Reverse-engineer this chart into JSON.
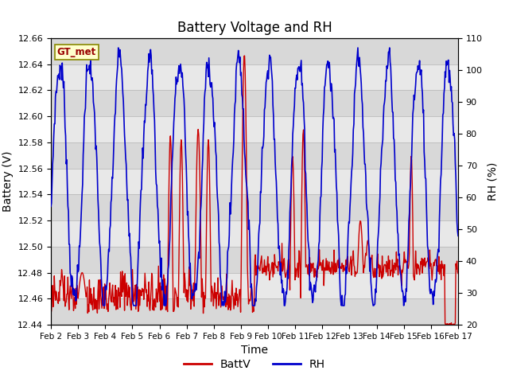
{
  "title": "Battery Voltage and RH",
  "xlabel": "Time",
  "ylabel_left": "Battery (V)",
  "ylabel_right": "RH (%)",
  "ylim_left": [
    12.44,
    12.66
  ],
  "ylim_right": [
    20,
    110
  ],
  "yticks_left": [
    12.44,
    12.46,
    12.48,
    12.5,
    12.52,
    12.54,
    12.56,
    12.58,
    12.6,
    12.62,
    12.64,
    12.66
  ],
  "yticks_right": [
    20,
    30,
    40,
    50,
    60,
    70,
    80,
    90,
    100,
    110
  ],
  "xtick_labels": [
    "Feb 2",
    "Feb 3",
    "Feb 4",
    "Feb 5",
    "Feb 6",
    "Feb 7",
    "Feb 8",
    "Feb 9",
    "Feb 10",
    "Feb 11",
    "Feb 12",
    "Feb 13",
    "Feb 14",
    "Feb 15",
    "Feb 16",
    "Feb 17"
  ],
  "label_box_text": "GT_met",
  "label_box_facecolor": "#ffffcc",
  "label_box_edgecolor": "#888800",
  "legend_labels": [
    "BattV",
    "RH"
  ],
  "line_color_batt": "#cc0000",
  "line_color_rh": "#0000cc",
  "background_plot": "#e8e8e8",
  "background_stripe": "#d8d8d8",
  "background_fig": "#ffffff",
  "grid_color": "#cccccc",
  "title_fontsize": 12,
  "axis_label_fontsize": 10,
  "tick_fontsize": 8
}
